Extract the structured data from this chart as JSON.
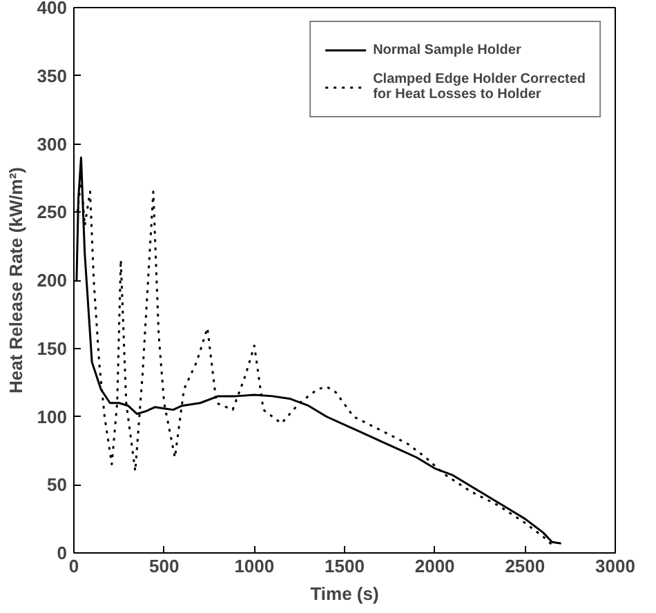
{
  "chart_data": {
    "type": "line",
    "xlabel": "Time (s)",
    "ylabel": "Heat Release Rate (kW/m²)",
    "xlim": [
      0,
      3000
    ],
    "ylim": [
      0,
      400
    ],
    "xticks": [
      0,
      500,
      1000,
      1500,
      2000,
      2500,
      3000
    ],
    "yticks": [
      0,
      50,
      100,
      150,
      200,
      250,
      300,
      350,
      400
    ],
    "grid": false,
    "legend": "top right",
    "series": [
      {
        "name": "Normal Sample Holder",
        "color": "#000000",
        "line_style": "solid",
        "x": [
          15,
          25,
          40,
          60,
          100,
          150,
          200,
          250,
          300,
          350,
          400,
          450,
          500,
          550,
          600,
          700,
          800,
          900,
          1000,
          1100,
          1200,
          1300,
          1400,
          1500,
          1600,
          1700,
          1800,
          1900,
          2000,
          2100,
          2200,
          2300,
          2400,
          2500,
          2600,
          2650,
          2700
        ],
        "values": [
          200,
          260,
          290,
          220,
          140,
          120,
          110,
          110,
          108,
          102,
          104,
          107,
          106,
          105,
          108,
          110,
          115,
          115,
          116,
          115,
          113,
          108,
          100,
          94,
          88,
          82,
          76,
          70,
          62,
          57,
          49,
          41,
          33,
          25,
          15,
          8,
          7
        ]
      },
      {
        "name": "Clamped Edge Holder Corrected\nfor Heat Losses to Holder",
        "color": "#000000",
        "line_style": "dotted",
        "x": [
          20,
          40,
          60,
          90,
          110,
          140,
          170,
          210,
          240,
          260,
          290,
          340,
          380,
          420,
          440,
          470,
          500,
          560,
          610,
          680,
          740,
          790,
          880,
          950,
          1000,
          1050,
          1150,
          1250,
          1350,
          1400,
          1450,
          1550,
          1700,
          1850,
          1950,
          2050,
          2200,
          2350,
          2500,
          2600,
          2650
        ],
        "values": [
          250,
          275,
          240,
          265,
          200,
          140,
          100,
          65,
          110,
          215,
          110,
          60,
          130,
          220,
          265,
          160,
          110,
          70,
          120,
          140,
          165,
          110,
          105,
          130,
          152,
          105,
          95,
          110,
          120,
          122,
          118,
          100,
          90,
          80,
          70,
          58,
          45,
          35,
          22,
          12,
          6
        ]
      }
    ]
  }
}
